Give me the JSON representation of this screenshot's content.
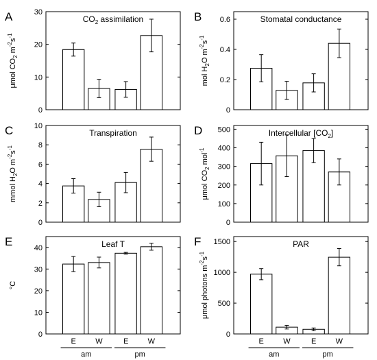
{
  "chart_data": [
    {
      "type": "bar",
      "panel_letter": "A",
      "title_parts": [
        {
          "t": "CO"
        },
        {
          "t": "2",
          "s": "sub"
        },
        {
          "t": " assimilation"
        }
      ],
      "ylabel_parts": [
        {
          "t": "μmol CO"
        },
        {
          "t": "2",
          "s": "sub"
        },
        {
          "t": " m"
        },
        {
          "t": "-2",
          "s": "sup"
        },
        {
          "t": "s"
        },
        {
          "t": "-1",
          "s": "sup"
        }
      ],
      "ylim": [
        0,
        30
      ],
      "yticks": [
        0,
        10,
        20,
        30
      ],
      "categories": [
        "E",
        "W",
        "E",
        "W"
      ],
      "values": [
        18.4,
        6.5,
        6.2,
        22.7
      ],
      "errors": [
        2.0,
        2.8,
        2.4,
        5.0
      ]
    },
    {
      "type": "bar",
      "panel_letter": "B",
      "title_parts": [
        {
          "t": "Stomatal conductance"
        }
      ],
      "ylabel_parts": [
        {
          "t": "mol H"
        },
        {
          "t": "2",
          "s": "sub"
        },
        {
          "t": "O m"
        },
        {
          "t": "-2",
          "s": "sup"
        },
        {
          "t": "s"
        },
        {
          "t": "-1",
          "s": "sup"
        }
      ],
      "ylim": [
        0,
        0.65
      ],
      "yticks": [
        0,
        0.2,
        0.4,
        0.6
      ],
      "categories": [
        "E",
        "W",
        "E",
        "W"
      ],
      "values": [
        0.275,
        0.128,
        0.178,
        0.44
      ],
      "errors": [
        0.09,
        0.06,
        0.06,
        0.095
      ]
    },
    {
      "type": "bar",
      "panel_letter": "C",
      "title_parts": [
        {
          "t": "Transpiration"
        }
      ],
      "ylabel_parts": [
        {
          "t": "mmol H"
        },
        {
          "t": "2",
          "s": "sub"
        },
        {
          "t": "O m"
        },
        {
          "t": "-2",
          "s": "sup"
        },
        {
          "t": "s"
        },
        {
          "t": "-1",
          "s": "sup"
        }
      ],
      "ylim": [
        0,
        10
      ],
      "yticks": [
        0,
        2,
        4,
        6,
        8,
        10
      ],
      "categories": [
        "E",
        "W",
        "E",
        "W"
      ],
      "values": [
        3.75,
        2.35,
        4.1,
        7.55
      ],
      "errors": [
        0.75,
        0.75,
        1.05,
        1.25
      ]
    },
    {
      "type": "bar",
      "panel_letter": "D",
      "title_parts": [
        {
          "t": "Intercellular [CO"
        },
        {
          "t": "2",
          "s": "sub"
        },
        {
          "t": "]"
        }
      ],
      "ylabel_parts": [
        {
          "t": "μmol CO"
        },
        {
          "t": "2",
          "s": "sub"
        },
        {
          "t": " mol"
        },
        {
          "t": "-1",
          "s": "sup"
        }
      ],
      "ylim": [
        0,
        520
      ],
      "yticks": [
        0,
        100,
        200,
        300,
        400,
        500
      ],
      "categories": [
        "E",
        "W",
        "E",
        "W"
      ],
      "values": [
        315,
        357,
        385,
        270
      ],
      "errors": [
        115,
        112,
        65,
        70
      ]
    },
    {
      "type": "bar",
      "panel_letter": "E",
      "title_parts": [
        {
          "t": "Leaf T"
        }
      ],
      "ylabel_parts": [
        {
          "t": "°C"
        }
      ],
      "ylim": [
        0,
        45
      ],
      "yticks": [
        0,
        10,
        20,
        30,
        40
      ],
      "categories": [
        "E",
        "W",
        "E",
        "W"
      ],
      "values": [
        32.3,
        33.0,
        37.3,
        40.3
      ],
      "errors": [
        3.5,
        2.5,
        0.4,
        1.6
      ]
    },
    {
      "type": "bar",
      "panel_letter": "F",
      "title_parts": [
        {
          "t": "PAR"
        }
      ],
      "ylabel_parts": [
        {
          "t": "μmol photons m"
        },
        {
          "t": "-2",
          "s": "sup"
        },
        {
          "t": "s"
        },
        {
          "t": "-1",
          "s": "sup"
        }
      ],
      "ylim": [
        0,
        1580
      ],
      "yticks": [
        0,
        500,
        1000,
        1500
      ],
      "categories": [
        "E",
        "W",
        "E",
        "W"
      ],
      "values": [
        970,
        110,
        75,
        1245
      ],
      "errors": [
        90,
        30,
        22,
        140
      ]
    }
  ],
  "groups": [
    "am",
    "pm"
  ]
}
